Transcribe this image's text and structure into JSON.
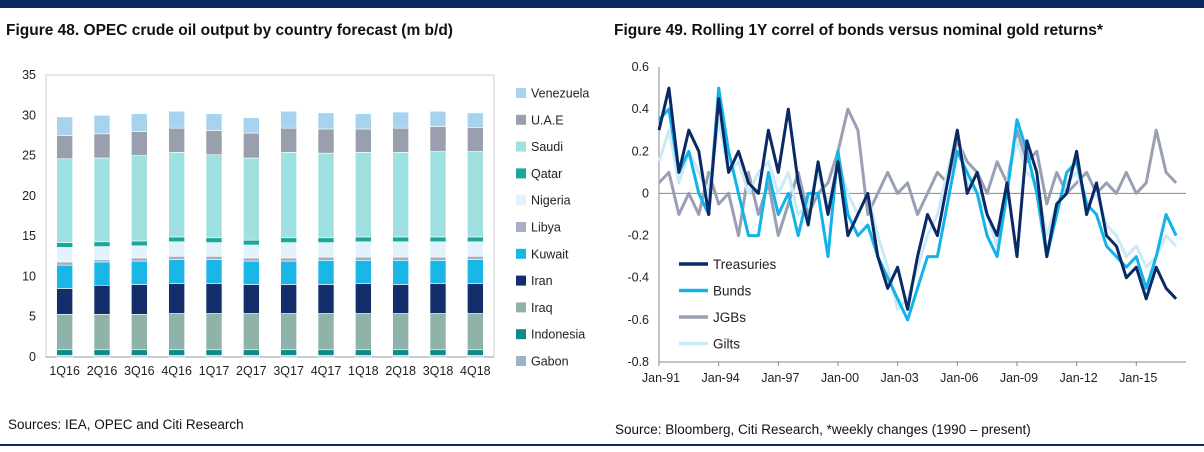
{
  "figures": {
    "left": {
      "title": "Figure 48. OPEC crude oil output by country forecast (m b/d)",
      "source": "Sources: IEA, OPEC and Citi Research"
    },
    "right": {
      "title": "Figure 49. Rolling 1Y correl of bonds versus nominal gold returns*",
      "source": "Source: Bloomberg, Citi Research, *weekly changes (1990 – present)"
    }
  },
  "chart_data": [
    {
      "type": "bar",
      "stacked": true,
      "title": "Figure 48. OPEC crude oil output by country forecast (m b/d)",
      "categories": [
        "1Q16",
        "2Q16",
        "3Q16",
        "4Q16",
        "1Q17",
        "2Q17",
        "3Q17",
        "4Q17",
        "1Q18",
        "2Q18",
        "3Q18",
        "4Q18"
      ],
      "ylim": [
        0,
        35
      ],
      "yticks": [
        0,
        5,
        10,
        15,
        20,
        25,
        30,
        35
      ],
      "legend_position": "right",
      "series": [
        {
          "name": "Gabon",
          "color": "#9bb3c9",
          "values": [
            0.2,
            0.2,
            0.2,
            0.2,
            0.2,
            0.2,
            0.2,
            0.2,
            0.2,
            0.2,
            0.2,
            0.2
          ]
        },
        {
          "name": "Indonesia",
          "color": "#0e8a8a",
          "values": [
            0.7,
            0.7,
            0.7,
            0.7,
            0.7,
            0.7,
            0.7,
            0.7,
            0.7,
            0.7,
            0.7,
            0.7
          ]
        },
        {
          "name": "Iraq",
          "color": "#8fb3a8",
          "values": [
            4.4,
            4.4,
            4.4,
            4.5,
            4.5,
            4.5,
            4.5,
            4.5,
            4.5,
            4.5,
            4.5,
            4.5
          ]
        },
        {
          "name": "Iran",
          "color": "#132e6b",
          "values": [
            3.2,
            3.6,
            3.7,
            3.7,
            3.7,
            3.6,
            3.6,
            3.6,
            3.7,
            3.6,
            3.7,
            3.7
          ]
        },
        {
          "name": "Kuwait",
          "color": "#19b6e6",
          "values": [
            2.9,
            2.9,
            2.9,
            3.0,
            3.0,
            2.9,
            2.9,
            3.0,
            2.9,
            3.0,
            2.9,
            3.0
          ]
        },
        {
          "name": "Libya",
          "color": "#a8adc4",
          "values": [
            0.4,
            0.3,
            0.4,
            0.4,
            0.4,
            0.4,
            0.4,
            0.4,
            0.4,
            0.4,
            0.4,
            0.4
          ]
        },
        {
          "name": "Nigeria",
          "color": "#e2f3fb",
          "values": [
            1.8,
            1.6,
            1.5,
            1.8,
            1.7,
            1.6,
            1.9,
            1.8,
            1.9,
            1.9,
            1.9,
            1.8
          ]
        },
        {
          "name": "Qatar",
          "color": "#1aa89a",
          "values": [
            0.6,
            0.6,
            0.6,
            0.6,
            0.6,
            0.6,
            0.6,
            0.6,
            0.6,
            0.6,
            0.6,
            0.6
          ]
        },
        {
          "name": "Saudi",
          "color": "#9fe0e0",
          "values": [
            10.4,
            10.4,
            10.6,
            10.5,
            10.3,
            10.2,
            10.6,
            10.5,
            10.5,
            10.5,
            10.6,
            10.6
          ]
        },
        {
          "name": "U.A.E",
          "color": "#9a9fae",
          "values": [
            2.9,
            3.0,
            3.0,
            3.0,
            3.0,
            3.1,
            3.0,
            3.0,
            2.9,
            3.0,
            3.1,
            3.0
          ]
        },
        {
          "name": "Venezuela",
          "color": "#a7d3ee",
          "values": [
            2.3,
            2.3,
            2.2,
            2.1,
            2.1,
            1.9,
            2.1,
            2.0,
            1.9,
            2.0,
            1.9,
            1.8
          ]
        }
      ]
    },
    {
      "type": "line",
      "title": "Figure 49. Rolling 1Y correl of bonds versus nominal gold returns*",
      "ylim": [
        -0.8,
        0.6
      ],
      "yticks": [
        -0.8,
        -0.6,
        -0.4,
        -0.2,
        0,
        0.2,
        0.4,
        0.6
      ],
      "xlim": [
        1991,
        2017.5
      ],
      "xticks": [
        {
          "label": "Jan-91",
          "x": 1991
        },
        {
          "label": "Jan-94",
          "x": 1994
        },
        {
          "label": "Jan-97",
          "x": 1997
        },
        {
          "label": "Jan-00",
          "x": 2000
        },
        {
          "label": "Jan-03",
          "x": 2003
        },
        {
          "label": "Jan-06",
          "x": 2006
        },
        {
          "label": "Jan-09",
          "x": 2009
        },
        {
          "label": "Jan-12",
          "x": 2012
        },
        {
          "label": "Jan-15",
          "x": 2015
        }
      ],
      "legend_position": "lower-left",
      "series": [
        {
          "name": "Treasuries",
          "color": "#0a2a66",
          "x": [
            1991,
            1991.5,
            1992,
            1992.5,
            1993,
            1993.5,
            1994,
            1994.5,
            1995,
            1995.5,
            1996,
            1996.5,
            1997,
            1997.5,
            1998,
            1998.5,
            1999,
            1999.5,
            2000,
            2000.5,
            2001,
            2001.5,
            2002,
            2002.5,
            2003,
            2003.5,
            2004,
            2004.5,
            2005,
            2005.5,
            2006,
            2006.5,
            2007,
            2007.5,
            2008,
            2008.5,
            2009,
            2009.5,
            2010,
            2010.5,
            2011,
            2011.5,
            2012,
            2012.5,
            2013,
            2013.5,
            2014,
            2014.5,
            2015,
            2015.5,
            2016,
            2016.5,
            2017
          ],
          "values": [
            0.3,
            0.5,
            0.1,
            0.3,
            0.2,
            -0.1,
            0.45,
            0.1,
            0.2,
            0.05,
            0.0,
            0.3,
            0.1,
            0.4,
            0.05,
            -0.15,
            0.15,
            -0.1,
            0.15,
            -0.2,
            -0.1,
            0.0,
            -0.3,
            -0.45,
            -0.35,
            -0.55,
            -0.3,
            -0.1,
            -0.2,
            0.05,
            0.3,
            0.0,
            0.1,
            -0.1,
            -0.2,
            0.05,
            -0.3,
            0.25,
            0.1,
            -0.3,
            -0.05,
            0.0,
            0.2,
            -0.1,
            0.05,
            -0.2,
            -0.25,
            -0.4,
            -0.35,
            -0.5,
            -0.35,
            -0.45,
            -0.5
          ]
        },
        {
          "name": "Bunds",
          "color": "#12b3e8",
          "x": [
            1991,
            1991.5,
            1992,
            1992.5,
            1993,
            1993.5,
            1994,
            1994.5,
            1995,
            1995.5,
            1996,
            1996.5,
            1997,
            1997.5,
            1998,
            1998.5,
            1999,
            1999.5,
            2000,
            2000.5,
            2001,
            2001.5,
            2002,
            2002.5,
            2003,
            2003.5,
            2004,
            2004.5,
            2005,
            2005.5,
            2006,
            2006.5,
            2007,
            2007.5,
            2008,
            2008.5,
            2009,
            2009.5,
            2010,
            2010.5,
            2011,
            2011.5,
            2012,
            2012.5,
            2013,
            2013.5,
            2014,
            2014.5,
            2015,
            2015.5,
            2016,
            2016.5,
            2017
          ],
          "values": [
            0.35,
            0.4,
            0.1,
            0.2,
            0.0,
            -0.1,
            0.5,
            0.2,
            0.0,
            -0.2,
            -0.2,
            0.1,
            -0.1,
            0.0,
            -0.2,
            0.0,
            0.0,
            -0.3,
            0.2,
            -0.1,
            -0.2,
            -0.15,
            -0.3,
            -0.4,
            -0.5,
            -0.6,
            -0.45,
            -0.3,
            -0.3,
            -0.05,
            0.2,
            0.1,
            0.0,
            -0.2,
            -0.3,
            0.0,
            0.35,
            0.2,
            0.0,
            -0.3,
            -0.1,
            0.1,
            0.15,
            -0.05,
            -0.1,
            -0.25,
            -0.3,
            -0.35,
            -0.3,
            -0.45,
            -0.3,
            -0.1,
            -0.2
          ]
        },
        {
          "name": "JGBs",
          "color": "#9aa0b4",
          "x": [
            1991,
            1991.5,
            1992,
            1992.5,
            1993,
            1993.5,
            1994,
            1994.5,
            1995,
            1995.5,
            1996,
            1996.5,
            1997,
            1997.5,
            1998,
            1998.5,
            1999,
            1999.5,
            2000,
            2000.5,
            2001,
            2001.5,
            2002,
            2002.5,
            2003,
            2003.5,
            2004,
            2004.5,
            2005,
            2005.5,
            2006,
            2006.5,
            2007,
            2007.5,
            2008,
            2008.5,
            2009,
            2009.5,
            2010,
            2010.5,
            2011,
            2011.5,
            2012,
            2012.5,
            2013,
            2013.5,
            2014,
            2014.5,
            2015,
            2015.5,
            2016,
            2016.5,
            2017
          ],
          "values": [
            0.05,
            0.1,
            -0.1,
            0.0,
            -0.1,
            0.1,
            -0.05,
            0.0,
            -0.2,
            0.1,
            -0.1,
            0.05,
            -0.2,
            -0.05,
            0.1,
            -0.1,
            0.0,
            0.05,
            0.2,
            0.4,
            0.3,
            -0.1,
            0.0,
            0.1,
            0.0,
            0.05,
            -0.1,
            0.0,
            0.1,
            0.05,
            0.25,
            0.15,
            0.1,
            0.0,
            0.15,
            0.05,
            0.3,
            0.15,
            0.2,
            -0.05,
            0.1,
            0.0,
            0.05,
            0.1,
            0.0,
            0.05,
            0.0,
            0.1,
            0.0,
            0.05,
            0.3,
            0.1,
            0.05
          ]
        },
        {
          "name": "Gilts",
          "color": "#cbe9f7",
          "x": [
            1991,
            1991.5,
            1992,
            1992.5,
            1993,
            1993.5,
            1994,
            1994.5,
            1995,
            1995.5,
            1996,
            1996.5,
            1997,
            1997.5,
            1998,
            1998.5,
            1999,
            1999.5,
            2000,
            2000.5,
            2001,
            2001.5,
            2002,
            2002.5,
            2003,
            2003.5,
            2004,
            2004.5,
            2005,
            2005.5,
            2006,
            2006.5,
            2007,
            2007.5,
            2008,
            2008.5,
            2009,
            2009.5,
            2010,
            2010.5,
            2011,
            2011.5,
            2012,
            2012.5,
            2013,
            2013.5,
            2014,
            2014.5,
            2015,
            2015.5,
            2016,
            2016.5,
            2017
          ],
          "values": [
            0.15,
            0.3,
            0.05,
            0.2,
            0.1,
            0.0,
            0.35,
            0.1,
            0.15,
            0.0,
            0.1,
            0.15,
            0.0,
            0.1,
            -0.1,
            -0.05,
            0.1,
            -0.05,
            0.15,
            0.0,
            -0.1,
            0.0,
            -0.2,
            -0.35,
            -0.55,
            -0.5,
            -0.35,
            -0.2,
            -0.1,
            0.1,
            0.3,
            0.05,
            0.0,
            -0.1,
            -0.25,
            0.05,
            0.25,
            0.1,
            0.05,
            -0.2,
            -0.05,
            0.05,
            0.1,
            -0.05,
            0.0,
            -0.15,
            -0.2,
            -0.3,
            -0.25,
            -0.35,
            -0.3,
            -0.2,
            -0.25
          ]
        }
      ]
    }
  ]
}
